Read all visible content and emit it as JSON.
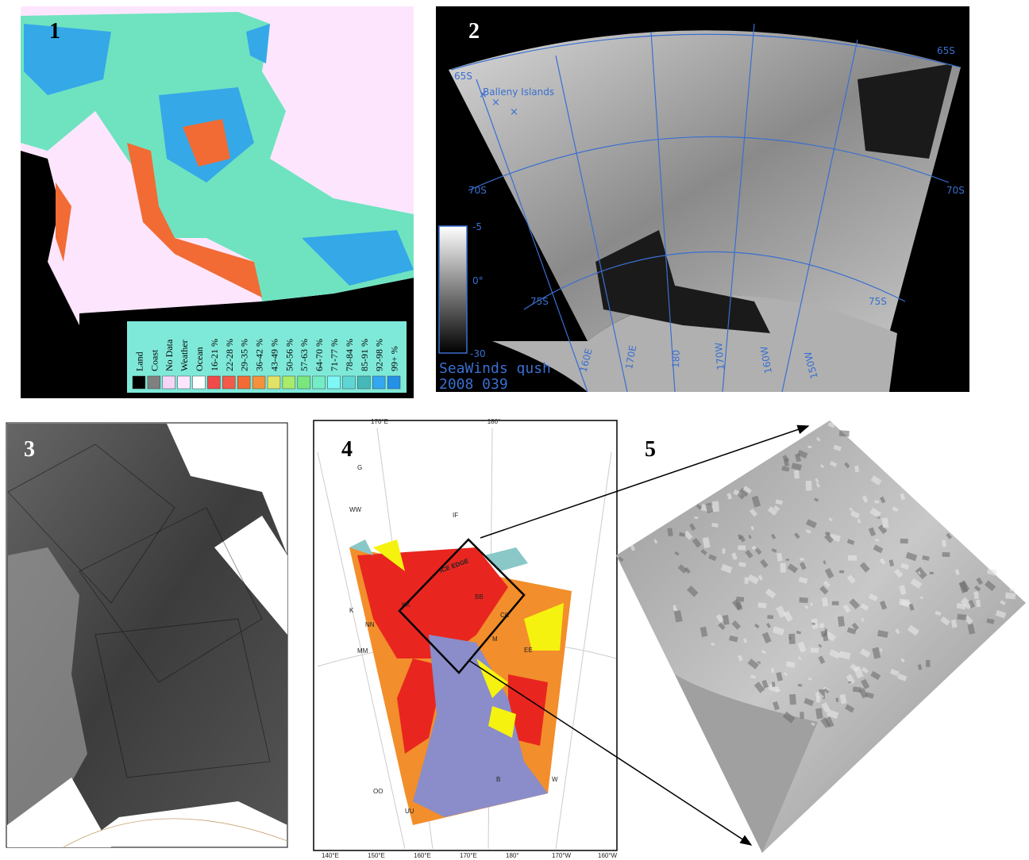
{
  "panels": [
    {
      "number": "1",
      "legend": [
        {
          "label": "Land",
          "color": "#000000"
        },
        {
          "label": "Coast",
          "color": "#808080"
        },
        {
          "label": "No Data",
          "color": "#f6d6f6"
        },
        {
          "label": "Weather",
          "color": "#fde6fd"
        },
        {
          "label": "Ocean",
          "color": "#ffffff"
        },
        {
          "label": "16-21 %",
          "color": "#f04a4a"
        },
        {
          "label": "22-28 %",
          "color": "#f35a4a"
        },
        {
          "label": "29-35 %",
          "color": "#f26b35"
        },
        {
          "label": "36-42 %",
          "color": "#f5913a"
        },
        {
          "label": "43-49 %",
          "color": "#e2e266"
        },
        {
          "label": "50-56 %",
          "color": "#a8ec6a"
        },
        {
          "label": "57-63 %",
          "color": "#7ae77e"
        },
        {
          "label": "64-70 %",
          "color": "#74edc6"
        },
        {
          "label": "71-77 %",
          "color": "#7ff7f7"
        },
        {
          "label": "78-84 %",
          "color": "#5ed6d6"
        },
        {
          "label": "85-91 %",
          "color": "#45b8b8"
        },
        {
          "label": "92-98 %",
          "color": "#33a7ef"
        },
        {
          "label": "99+ %",
          "color": "#2490e6"
        }
      ]
    },
    {
      "number": "2",
      "grid_labels": [
        "65S",
        "65S",
        "70S",
        "70S",
        "75S",
        "75S",
        "160E",
        "170E",
        "180",
        "170W",
        "160W",
        "150W"
      ],
      "place_label": "Balleny Islands",
      "colorbar_labels": [
        "-5",
        "0°",
        "-30"
      ],
      "caption": [
        "SeaWinds qush",
        "2008 039"
      ]
    },
    {
      "number": "3"
    },
    {
      "number": "4",
      "grid_labels": [
        "170°E",
        "180°"
      ],
      "map_labels": [
        "ICE EDGE",
        "IF",
        "WW",
        "G",
        "BB",
        "KK",
        "NN",
        "K",
        "MM",
        "CC",
        "EE",
        "M",
        "B",
        "W",
        "OO",
        "UU"
      ],
      "bottom_labels": [
        "140°E",
        "150°E",
        "160°E",
        "170°E",
        "180°",
        "170°W",
        "160°W"
      ]
    },
    {
      "number": "5"
    }
  ]
}
